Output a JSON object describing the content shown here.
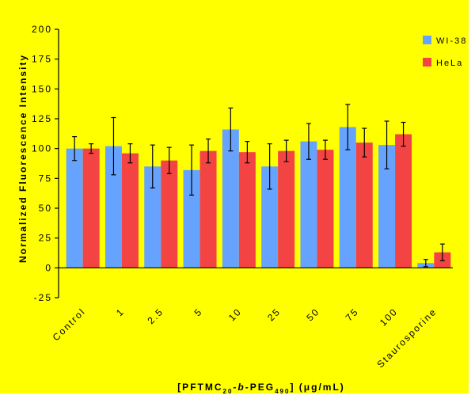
{
  "colors": {
    "background": "#ffff00",
    "series_1": "#66a3ff",
    "series_2": "#f44343",
    "axis": "#000000"
  },
  "chart_data": {
    "type": "bar",
    "title": "",
    "xlabel": "[PFTMC20-b-PEG490] (μg/mL)",
    "xlabel_parts": {
      "prefix": "[PFTMC",
      "sub1": "20",
      "mid1": "-",
      "italic": "b",
      "mid2": "-PEG",
      "sub2": "490",
      "suffix": "] (μg/mL)"
    },
    "ylabel": "Normalized Fluorescence Intensity",
    "ylim": [
      -25,
      200
    ],
    "yticks": [
      -25,
      0,
      25,
      50,
      75,
      100,
      125,
      150,
      175,
      200
    ],
    "categories": [
      "Control",
      "1",
      "2.5",
      "5",
      "10",
      "25",
      "50",
      "75",
      "100",
      "Staurosporine"
    ],
    "legend_position": "top-right",
    "grid": false,
    "series": [
      {
        "name": "WI-38",
        "values": [
          100,
          102,
          85,
          82,
          116,
          85,
          106,
          118,
          103,
          4
        ],
        "errors": [
          10,
          24,
          18,
          21,
          18,
          19,
          15,
          19,
          20,
          3
        ]
      },
      {
        "name": "HeLa",
        "values": [
          100,
          96,
          90,
          98,
          97,
          98,
          99,
          105,
          112,
          13
        ],
        "errors": [
          4,
          8,
          11,
          10,
          9,
          9,
          8,
          12,
          10,
          7
        ]
      }
    ]
  }
}
